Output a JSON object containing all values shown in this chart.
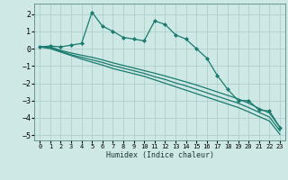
{
  "xlabel": "Humidex (Indice chaleur)",
  "ylabel": "",
  "background_color": "#cde8e5",
  "grid_color": "#afd0cc",
  "line_color": "#1a7a6e",
  "xlim": [
    -0.5,
    23.5
  ],
  "ylim": [
    -5.3,
    2.6
  ],
  "yticks": [
    -5,
    -4,
    -3,
    -2,
    -1,
    0,
    1,
    2
  ],
  "xticks": [
    0,
    1,
    2,
    3,
    4,
    5,
    6,
    7,
    8,
    9,
    10,
    11,
    12,
    13,
    14,
    15,
    16,
    17,
    18,
    19,
    20,
    21,
    22,
    23
  ],
  "series": [
    {
      "x": [
        0,
        1,
        2,
        3,
        4,
        5,
        6,
        7,
        8,
        9,
        10,
        11,
        12,
        13,
        14,
        15,
        16,
        17,
        18,
        19,
        20,
        21,
        22,
        23
      ],
      "y": [
        0.1,
        0.15,
        0.1,
        0.2,
        0.3,
        2.1,
        1.3,
        1.0,
        0.65,
        0.55,
        0.45,
        1.6,
        1.4,
        0.8,
        0.55,
        0.0,
        -0.55,
        -1.55,
        -2.35,
        -3.0,
        -3.0,
        -3.55,
        -3.6,
        -4.55
      ],
      "marker": "D",
      "markersize": 2.0,
      "linewidth": 0.9
    },
    {
      "x": [
        0,
        1,
        2,
        3,
        4,
        5,
        6,
        7,
        8,
        9,
        10,
        11,
        12,
        13,
        14,
        15,
        16,
        17,
        18,
        19,
        20,
        21,
        22,
        23
      ],
      "y": [
        0.1,
        0.1,
        -0.1,
        -0.25,
        -0.38,
        -0.5,
        -0.65,
        -0.82,
        -0.97,
        -1.12,
        -1.27,
        -1.42,
        -1.58,
        -1.75,
        -1.92,
        -2.1,
        -2.3,
        -2.5,
        -2.7,
        -2.9,
        -3.15,
        -3.45,
        -3.72,
        -4.55
      ],
      "marker": null,
      "markersize": 0,
      "linewidth": 0.9
    },
    {
      "x": [
        0,
        1,
        2,
        3,
        4,
        5,
        6,
        7,
        8,
        9,
        10,
        11,
        12,
        13,
        14,
        15,
        16,
        17,
        18,
        19,
        20,
        21,
        22,
        23
      ],
      "y": [
        0.1,
        0.05,
        -0.15,
        -0.35,
        -0.5,
        -0.65,
        -0.8,
        -0.98,
        -1.13,
        -1.28,
        -1.43,
        -1.62,
        -1.78,
        -1.98,
        -2.15,
        -2.35,
        -2.55,
        -2.75,
        -2.95,
        -3.15,
        -3.4,
        -3.68,
        -3.95,
        -4.75
      ],
      "marker": null,
      "markersize": 0,
      "linewidth": 0.9
    },
    {
      "x": [
        0,
        1,
        2,
        3,
        4,
        5,
        6,
        7,
        8,
        9,
        10,
        11,
        12,
        13,
        14,
        15,
        16,
        17,
        18,
        19,
        20,
        21,
        22,
        23
      ],
      "y": [
        0.1,
        0.0,
        -0.2,
        -0.4,
        -0.6,
        -0.78,
        -0.95,
        -1.15,
        -1.3,
        -1.45,
        -1.6,
        -1.8,
        -2.0,
        -2.2,
        -2.4,
        -2.6,
        -2.8,
        -3.0,
        -3.2,
        -3.4,
        -3.65,
        -3.92,
        -4.18,
        -4.95
      ],
      "marker": null,
      "markersize": 0,
      "linewidth": 0.9
    }
  ]
}
